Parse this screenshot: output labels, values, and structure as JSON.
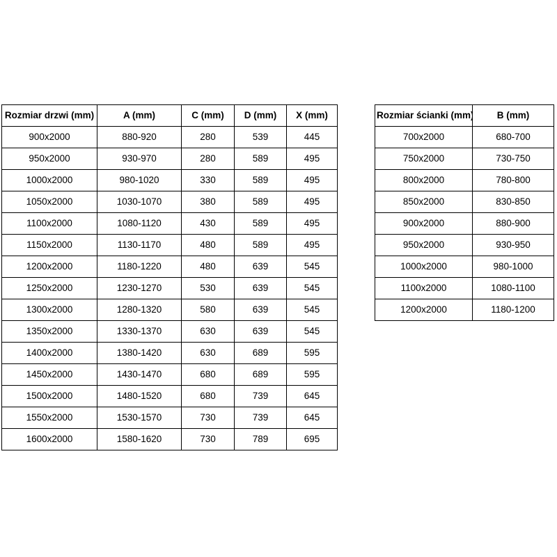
{
  "page": {
    "background": "#ffffff",
    "text_color": "#000000",
    "border_color": "#000000"
  },
  "door_table": {
    "headers": [
      "Rozmiar drzwi (mm)",
      "A (mm)",
      "C (mm)",
      "D (mm)",
      "X (mm)"
    ],
    "rows": [
      [
        "900x2000",
        "880-920",
        "280",
        "539",
        "445"
      ],
      [
        "950x2000",
        "930-970",
        "280",
        "589",
        "495"
      ],
      [
        "1000x2000",
        "980-1020",
        "330",
        "589",
        "495"
      ],
      [
        "1050x2000",
        "1030-1070",
        "380",
        "589",
        "495"
      ],
      [
        "1100x2000",
        "1080-1120",
        "430",
        "589",
        "495"
      ],
      [
        "1150x2000",
        "1130-1170",
        "480",
        "589",
        "495"
      ],
      [
        "1200x2000",
        "1180-1220",
        "480",
        "639",
        "545"
      ],
      [
        "1250x2000",
        "1230-1270",
        "530",
        "639",
        "545"
      ],
      [
        "1300x2000",
        "1280-1320",
        "580",
        "639",
        "545"
      ],
      [
        "1350x2000",
        "1330-1370",
        "630",
        "639",
        "545"
      ],
      [
        "1400x2000",
        "1380-1420",
        "630",
        "689",
        "595"
      ],
      [
        "1450x2000",
        "1430-1470",
        "680",
        "689",
        "595"
      ],
      [
        "1500x2000",
        "1480-1520",
        "680",
        "739",
        "645"
      ],
      [
        "1550x2000",
        "1530-1570",
        "730",
        "739",
        "645"
      ],
      [
        "1600x2000",
        "1580-1620",
        "730",
        "789",
        "695"
      ]
    ]
  },
  "wall_table": {
    "headers": [
      "Rozmiar ścianki (mm)",
      "B (mm)"
    ],
    "rows": [
      [
        "700x2000",
        "680-700"
      ],
      [
        "750x2000",
        "730-750"
      ],
      [
        "800x2000",
        "780-800"
      ],
      [
        "850x2000",
        "830-850"
      ],
      [
        "900x2000",
        "880-900"
      ],
      [
        "950x2000",
        "930-950"
      ],
      [
        "1000x2000",
        "980-1000"
      ],
      [
        "1100x2000",
        "1080-1100"
      ],
      [
        "1200x2000",
        "1180-1200"
      ]
    ]
  }
}
